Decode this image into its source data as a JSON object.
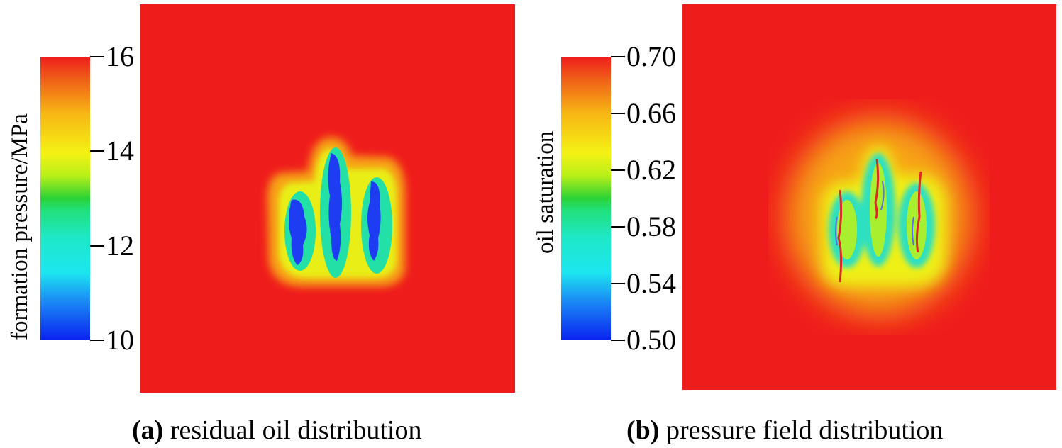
{
  "chart_data": [
    {
      "type": "heatmap",
      "colorbar": {
        "title": "formation pressure/MPa",
        "range": [
          10,
          16
        ],
        "ticks": [
          {
            "value": 16,
            "label": "16"
          },
          {
            "value": 14,
            "label": "14"
          },
          {
            "value": 12,
            "label": "12"
          },
          {
            "value": 10,
            "label": "10"
          }
        ]
      },
      "caption": {
        "tag": "(a)",
        "text": "residual oil distribution"
      },
      "field_colors": {
        "background": "#ef1c1c",
        "halo": "#f6a414",
        "ring": "#e8ee16",
        "mid": "#22e0a6",
        "core": "#1e3cf2"
      }
    },
    {
      "type": "heatmap",
      "colorbar": {
        "title": "oil saturation",
        "range": [
          0.5,
          0.7
        ],
        "ticks": [
          {
            "value": 0.7,
            "label": "0.70"
          },
          {
            "value": 0.66,
            "label": "0.66"
          },
          {
            "value": 0.62,
            "label": "0.62"
          },
          {
            "value": 0.58,
            "label": "0.58"
          },
          {
            "value": 0.54,
            "label": "0.54"
          },
          {
            "value": 0.5,
            "label": "0.50"
          }
        ]
      },
      "caption": {
        "tag": "(b)",
        "text": "pressure field distribution"
      },
      "field_colors": {
        "background": "#ef1c1c",
        "halo": "#f6a414",
        "ring": "#e8ee16",
        "mid": "#2ee0c0",
        "core": "#e02828"
      }
    }
  ]
}
